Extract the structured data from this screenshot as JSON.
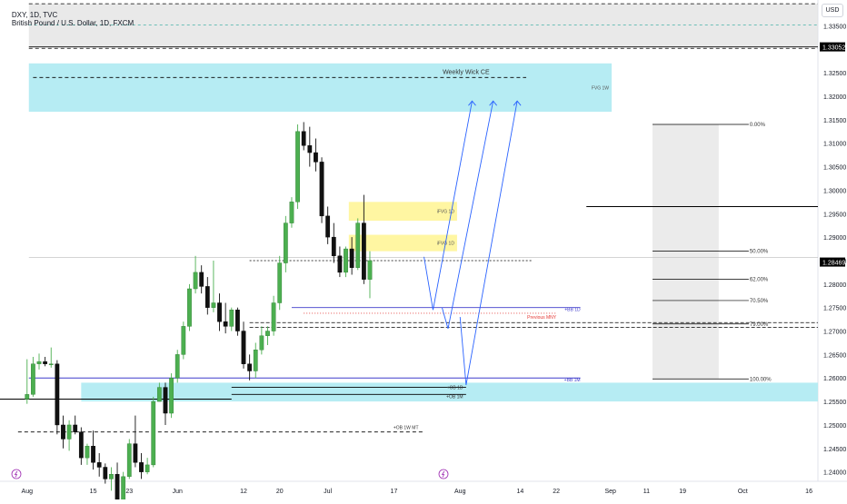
{
  "header": {
    "symbol": "DXY, 1D, TVC",
    "secondary": "British Pound / U.S. Dollar, 1D, FXCM"
  },
  "currency_badge": "USD",
  "colors": {
    "up": "#4caf50",
    "down": "#111111",
    "fvg_cyan": "#b2ebf2",
    "ifvg_yellow": "#fff59d",
    "gray_zone": "#e0e0e0",
    "blue_arrow": "#2962ff",
    "purple_line": "#3f3ccb",
    "price_tag": "#000000"
  },
  "chart_data": {
    "type": "candlestick",
    "instrument": "British Pound / U.S. Dollar, 1D, FXCM",
    "y_axis": {
      "ticks": [
        1.24,
        1.245,
        1.25,
        1.255,
        1.26,
        1.265,
        1.27,
        1.275,
        1.28,
        1.285,
        1.29,
        1.295,
        1.3,
        1.305,
        1.31,
        1.315,
        1.32,
        1.325,
        1.335
      ],
      "tick_labels": [
        "1.24000",
        "1.24500",
        "1.25000",
        "1.25500",
        "1.26000",
        "1.26500",
        "1.27000",
        "1.27500",
        "1.28000",
        "1.28500",
        "1.29000",
        "1.29500",
        "1.30000",
        "1.30500",
        "1.31000",
        "1.31500",
        "1.32000",
        "1.32500",
        "1.33500"
      ],
      "ylim": [
        1.238,
        1.3405
      ],
      "current_price": "1.28469",
      "marked_level": "1.33052"
    },
    "x_axis": {
      "labels": [
        {
          "text": "Aug",
          "bar": 0
        },
        {
          "text": "15",
          "bar": 11
        },
        {
          "text": "23",
          "bar": 17
        },
        {
          "text": "Jun",
          "bar": 25
        },
        {
          "text": "12",
          "bar": 36
        },
        {
          "text": "20",
          "bar": 42
        },
        {
          "text": "Jul",
          "bar": 50
        },
        {
          "text": "17",
          "bar": 61
        },
        {
          "text": "Aug",
          "bar": 72
        },
        {
          "text": "14",
          "bar": 82
        },
        {
          "text": "22",
          "bar": 88
        },
        {
          "text": "Sep",
          "bar": 97
        },
        {
          "text": "11",
          "bar": 103
        },
        {
          "text": "19",
          "bar": 109
        },
        {
          "text": "Oct",
          "bar": 119
        },
        {
          "text": "16",
          "bar": 130
        }
      ],
      "bar_range": [
        -4.5,
        131.5
      ]
    },
    "candles": [
      {
        "o": 1.2555,
        "h": 1.264,
        "l": 1.2545,
        "c": 1.2565
      },
      {
        "o": 1.2565,
        "h": 1.2645,
        "l": 1.256,
        "c": 1.263
      },
      {
        "o": 1.263,
        "h": 1.2652,
        "l": 1.2618,
        "c": 1.2635
      },
      {
        "o": 1.2635,
        "h": 1.2645,
        "l": 1.2625,
        "c": 1.263
      },
      {
        "o": 1.263,
        "h": 1.2665,
        "l": 1.2622,
        "c": 1.263
      },
      {
        "o": 1.263,
        "h": 1.2638,
        "l": 1.248,
        "c": 1.25
      },
      {
        "o": 1.25,
        "h": 1.252,
        "l": 1.245,
        "c": 1.247
      },
      {
        "o": 1.247,
        "h": 1.251,
        "l": 1.2445,
        "c": 1.25
      },
      {
        "o": 1.25,
        "h": 1.252,
        "l": 1.248,
        "c": 1.2485
      },
      {
        "o": 1.2485,
        "h": 1.2495,
        "l": 1.2415,
        "c": 1.243
      },
      {
        "o": 1.243,
        "h": 1.246,
        "l": 1.2415,
        "c": 1.2455
      },
      {
        "o": 1.2455,
        "h": 1.2488,
        "l": 1.2405,
        "c": 1.242
      },
      {
        "o": 1.242,
        "h": 1.244,
        "l": 1.239,
        "c": 1.241
      },
      {
        "o": 1.241,
        "h": 1.2418,
        "l": 1.2375,
        "c": 1.2385
      },
      {
        "o": 1.2385,
        "h": 1.241,
        "l": 1.236,
        "c": 1.2395
      },
      {
        "o": 1.2395,
        "h": 1.242,
        "l": 1.233,
        "c": 1.234
      },
      {
        "o": 1.234,
        "h": 1.24,
        "l": 1.2325,
        "c": 1.239
      },
      {
        "o": 1.239,
        "h": 1.247,
        "l": 1.2385,
        "c": 1.246
      },
      {
        "o": 1.246,
        "h": 1.252,
        "l": 1.241,
        "c": 1.242
      },
      {
        "o": 1.242,
        "h": 1.244,
        "l": 1.2385,
        "c": 1.24
      },
      {
        "o": 1.24,
        "h": 1.243,
        "l": 1.2395,
        "c": 1.2415
      },
      {
        "o": 1.2415,
        "h": 1.256,
        "l": 1.241,
        "c": 1.255
      },
      {
        "o": 1.255,
        "h": 1.259,
        "l": 1.255,
        "c": 1.258
      },
      {
        "o": 1.258,
        "h": 1.259,
        "l": 1.25,
        "c": 1.2525
      },
      {
        "o": 1.2525,
        "h": 1.261,
        "l": 1.2515,
        "c": 1.26
      },
      {
        "o": 1.26,
        "h": 1.266,
        "l": 1.259,
        "c": 1.265
      },
      {
        "o": 1.265,
        "h": 1.272,
        "l": 1.264,
        "c": 1.271
      },
      {
        "o": 1.271,
        "h": 1.28,
        "l": 1.27,
        "c": 1.279
      },
      {
        "o": 1.279,
        "h": 1.286,
        "l": 1.278,
        "c": 1.2825
      },
      {
        "o": 1.2825,
        "h": 1.284,
        "l": 1.278,
        "c": 1.2795
      },
      {
        "o": 1.2795,
        "h": 1.2815,
        "l": 1.2735,
        "c": 1.275
      },
      {
        "o": 1.275,
        "h": 1.285,
        "l": 1.274,
        "c": 1.276
      },
      {
        "o": 1.276,
        "h": 1.278,
        "l": 1.27,
        "c": 1.272
      },
      {
        "o": 1.272,
        "h": 1.276,
        "l": 1.2695,
        "c": 1.271
      },
      {
        "o": 1.271,
        "h": 1.275,
        "l": 1.27,
        "c": 1.2745
      },
      {
        "o": 1.2745,
        "h": 1.275,
        "l": 1.269,
        "c": 1.27
      },
      {
        "o": 1.27,
        "h": 1.272,
        "l": 1.262,
        "c": 1.263
      },
      {
        "o": 1.263,
        "h": 1.265,
        "l": 1.2595,
        "c": 1.2615
      },
      {
        "o": 1.2615,
        "h": 1.2675,
        "l": 1.26,
        "c": 1.266
      },
      {
        "o": 1.266,
        "h": 1.271,
        "l": 1.265,
        "c": 1.269
      },
      {
        "o": 1.269,
        "h": 1.271,
        "l": 1.267,
        "c": 1.27
      },
      {
        "o": 1.27,
        "h": 1.2775,
        "l": 1.269,
        "c": 1.276
      },
      {
        "o": 1.276,
        "h": 1.286,
        "l": 1.2745,
        "c": 1.2845
      },
      {
        "o": 1.2845,
        "h": 1.2945,
        "l": 1.2825,
        "c": 1.293
      },
      {
        "o": 1.293,
        "h": 1.2985,
        "l": 1.292,
        "c": 1.2975
      },
      {
        "o": 1.2975,
        "h": 1.314,
        "l": 1.296,
        "c": 1.3125
      },
      {
        "o": 1.3125,
        "h": 1.3145,
        "l": 1.3085,
        "c": 1.3095
      },
      {
        "o": 1.3095,
        "h": 1.3135,
        "l": 1.305,
        "c": 1.308
      },
      {
        "o": 1.308,
        "h": 1.311,
        "l": 1.304,
        "c": 1.306
      },
      {
        "o": 1.306,
        "h": 1.307,
        "l": 1.293,
        "c": 1.2945
      },
      {
        "o": 1.2945,
        "h": 1.2965,
        "l": 1.2885,
        "c": 1.29
      },
      {
        "o": 1.29,
        "h": 1.293,
        "l": 1.2845,
        "c": 1.286
      },
      {
        "o": 1.286,
        "h": 1.288,
        "l": 1.2815,
        "c": 1.2825
      },
      {
        "o": 1.2825,
        "h": 1.288,
        "l": 1.2815,
        "c": 1.2875
      },
      {
        "o": 1.2875,
        "h": 1.29,
        "l": 1.282,
        "c": 1.2835
      },
      {
        "o": 1.2835,
        "h": 1.294,
        "l": 1.283,
        "c": 1.293
      },
      {
        "o": 1.293,
        "h": 1.299,
        "l": 1.28,
        "c": 1.281
      },
      {
        "o": 1.281,
        "h": 1.287,
        "l": 1.277,
        "c": 1.285
      }
    ],
    "zones": [
      {
        "label": "FVG 1W",
        "y1": 1.3167,
        "y2": 1.327,
        "color": "cyan"
      },
      {
        "label": "iFVG 1D",
        "y1": 1.2935,
        "y2": 1.2975,
        "color": "yellow"
      },
      {
        "label": "iFVG 1D",
        "y1": 1.287,
        "y2": 1.2905,
        "color": "yellow"
      },
      {
        "label": "",
        "y1": 1.255,
        "y2": 1.259,
        "color": "cyan"
      }
    ],
    "levels": [
      {
        "label": "Weekly Wick CE",
        "value": 1.324
      },
      {
        "label": "+BB 1D",
        "value": 1.275
      },
      {
        "label": "Previous MNY",
        "value": 1.2738
      },
      {
        "label": "+BB 1M",
        "value": 1.26
      },
      {
        "label": "+OB 1D",
        "value": 1.258
      },
      {
        "label": "+OB 1M",
        "value": 1.2565
      },
      {
        "label": "+OB 1W MT",
        "value": 1.2485
      }
    ],
    "fib": {
      "levels": [
        {
          "label": "0.00%",
          "value": 1.314
        },
        {
          "label": "50.00%",
          "value": 1.287
        },
        {
          "label": "62.00%",
          "value": 1.281
        },
        {
          "label": "70.50%",
          "value": 1.2765
        },
        {
          "label": "79.00%",
          "value": 1.2715
        },
        {
          "label": "100.00%",
          "value": 1.2598
        }
      ]
    }
  },
  "footer": {
    "chart_icon_left": "tradingview-flash-icon",
    "chart_icon_mid": "tradingview-flash-icon"
  }
}
